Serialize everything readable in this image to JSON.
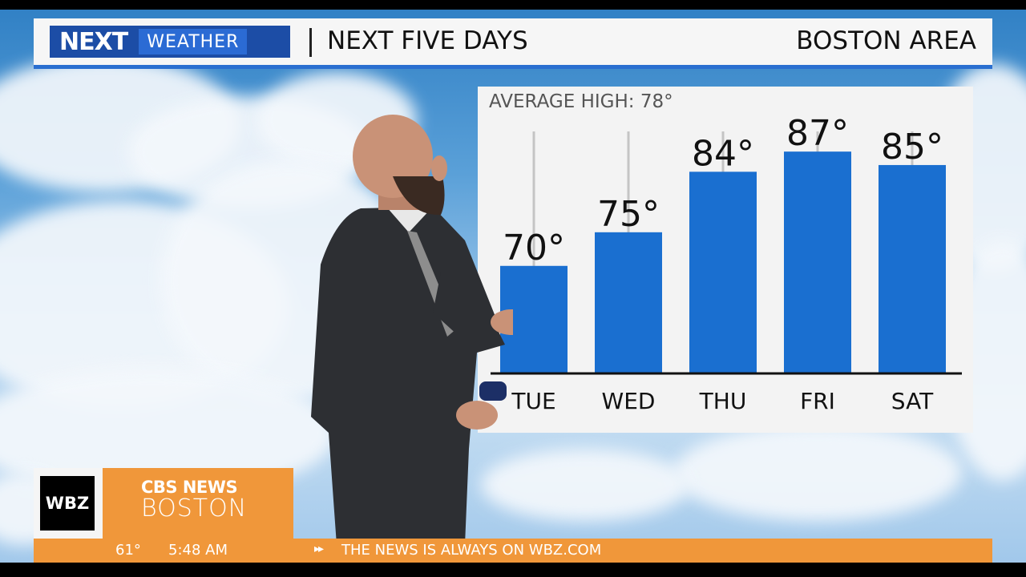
{
  "header": {
    "logo_next": "NEXT",
    "logo_weather": "WEATHER",
    "title": "NEXT FIVE DAYS",
    "location": "BOSTON AREA"
  },
  "chart_data": {
    "type": "bar",
    "annotation": "AVERAGE HIGH:  78°",
    "average_high": 78,
    "categories": [
      "TUE",
      "WED",
      "THU",
      "FRI",
      "SAT"
    ],
    "values": [
      70,
      75,
      84,
      87,
      85
    ],
    "value_labels": [
      "70°",
      "75°",
      "84°",
      "87°",
      "85°"
    ],
    "ylim": [
      54,
      90
    ],
    "title": "",
    "xlabel": "",
    "ylabel": "",
    "bar_color": "#1a6fd0",
    "baseline_color": "#111111"
  },
  "branding": {
    "station": "WBZ",
    "network": "CBS NEWS",
    "city": "BOSTON",
    "orange": "#f0973a"
  },
  "ticker": {
    "temperature": "61°",
    "time": "5:48 AM",
    "arrow": "▸▸",
    "message": "THE NEWS IS ALWAYS ON WBZ.COM"
  }
}
